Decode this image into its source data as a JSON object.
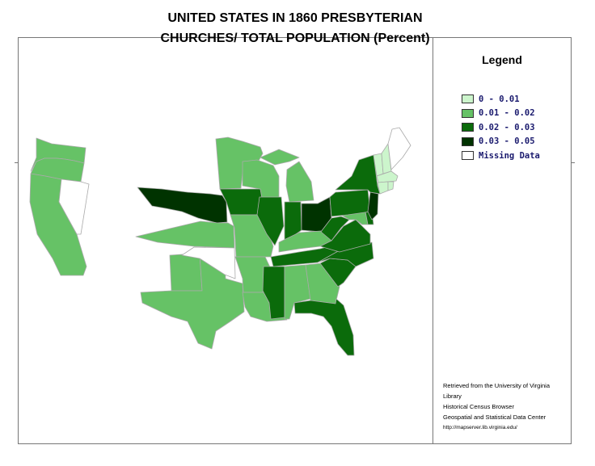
{
  "title_line1": "UNITED STATES IN 1860 PRESBYTERIAN",
  "title_line2": "CHURCHES/ TOTAL POPULATION (Percent)",
  "legend": {
    "title": "Legend",
    "items": [
      {
        "label": "0 - 0.01",
        "color": "#ccf5cc"
      },
      {
        "label": "0.01 - 0.02",
        "color": "#66c266"
      },
      {
        "label": "0.02 - 0.03",
        "color": "#0b6b0b"
      },
      {
        "label": "0.03 - 0.05",
        "color": "#003300"
      },
      {
        "label": "Missing Data",
        "color": "#ffffff"
      }
    ]
  },
  "credits": {
    "line1": "Retrieved from the University of Virginia",
    "line2": "Library",
    "line3": "Historical Census Browser",
    "line4": "Geospatial and Statistical Data Center",
    "url": "http://mapserver.lib.virginia.edu/"
  },
  "state_classes": {
    "washington": "0.01 - 0.02",
    "oregon": "0.01 - 0.02",
    "california": "0.01 - 0.02",
    "nevada": "Missing Data",
    "nebraska": "0.03 - 0.05",
    "kansas": "0.01 - 0.02",
    "texas": "0.01 - 0.02",
    "new-mexico": "0.01 - 0.02",
    "oklahoma": "Missing Data",
    "minnesota": "0.01 - 0.02",
    "iowa": "0.02 - 0.03",
    "missouri": "0.01 - 0.02",
    "arkansas": "0.01 - 0.02",
    "louisiana": "0.01 - 0.02",
    "wisconsin": "0.01 - 0.02",
    "illinois": "0.02 - 0.03",
    "michigan": "0.01 - 0.02",
    "indiana": "0.02 - 0.03",
    "ohio": "0.03 - 0.05",
    "kentucky": "0.01 - 0.02",
    "tennessee": "0.02 - 0.03",
    "mississippi": "0.02 - 0.03",
    "alabama": "0.01 - 0.02",
    "georgia": "0.01 - 0.02",
    "florida": "0.02 - 0.03",
    "south-carolina": "0.02 - 0.03",
    "north-carolina": "0.02 - 0.03",
    "virginia": "0.02 - 0.03",
    "west-virginia": "0.02 - 0.03",
    "maryland": "0.01 - 0.02",
    "delaware": "0.02 - 0.03",
    "pennsylvania": "0.02 - 0.03",
    "new-jersey": "0.03 - 0.05",
    "new-york": "0.02 - 0.03",
    "vermont": "0 - 0.01",
    "new-hampshire": "0 - 0.01",
    "maine": "Missing Data",
    "massachusetts": "0 - 0.01",
    "connecticut": "0 - 0.01",
    "rhode-island": "0 - 0.01"
  }
}
